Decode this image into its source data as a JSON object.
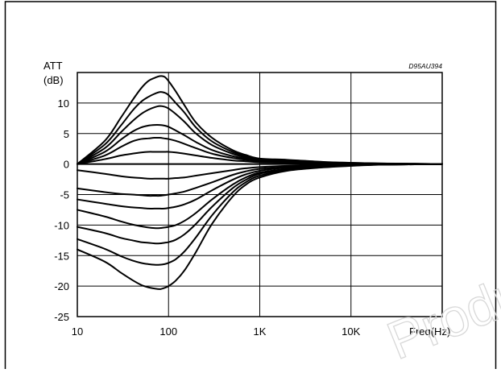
{
  "figure_id": "D95AU394",
  "watermark": "Product(s)",
  "chart_data": {
    "type": "line",
    "title": "",
    "xlabel": "Freq(Hz)",
    "ylabel": "ATT (dB)",
    "ylabel_lines": [
      "ATT",
      "(dB)"
    ],
    "x_scale": "log",
    "xlim": [
      10,
      100000
    ],
    "ylim": [
      -25,
      15
    ],
    "x_ticks": [
      10,
      100,
      1000,
      10000
    ],
    "x_tick_labels": [
      "10",
      "100",
      "1K",
      "10K"
    ],
    "y_ticks": [
      10,
      5,
      0,
      -5,
      -10,
      -15,
      -20,
      -25
    ],
    "y_tick_labels": [
      "10",
      "5",
      "0",
      "-5",
      "-10",
      "-15",
      "-20",
      "-25"
    ],
    "grid": true,
    "legend": "none",
    "x": [
      10,
      20,
      30,
      40,
      50,
      60,
      70,
      80,
      90,
      100,
      120,
      150,
      200,
      300,
      500,
      700,
      1000,
      2000,
      5000,
      10000,
      20000,
      50000,
      100000
    ],
    "series": [
      {
        "values": [
          0,
          3.8,
          7.6,
          10.4,
          12.4,
          13.6,
          14.1,
          14.4,
          14.3,
          13.6,
          11.9,
          9.6,
          6.8,
          4.3,
          2.3,
          1.5,
          0.9,
          0.7,
          0.35,
          0.2,
          0.1,
          0.05,
          0
        ]
      },
      {
        "values": [
          0,
          3.2,
          6.3,
          8.7,
          10.2,
          11.0,
          11.5,
          11.8,
          11.7,
          11.3,
          10.0,
          8.4,
          6.0,
          3.7,
          2.0,
          1.3,
          0.8,
          0.6,
          0.3,
          0.2,
          0.1,
          0.05,
          0
        ]
      },
      {
        "values": [
          0,
          2.6,
          5.2,
          7.0,
          8.2,
          8.9,
          9.3,
          9.5,
          9.4,
          9.1,
          8.2,
          6.9,
          5.0,
          3.1,
          1.7,
          1.1,
          0.7,
          0.5,
          0.3,
          0.15,
          0.1,
          0.05,
          0
        ]
      },
      {
        "values": [
          0,
          2.0,
          4.0,
          5.3,
          6.0,
          6.3,
          6.4,
          6.4,
          6.3,
          6.1,
          5.5,
          4.7,
          3.6,
          2.3,
          1.3,
          0.9,
          0.6,
          0.4,
          0.2,
          0.1,
          0.05,
          0.02,
          0
        ]
      },
      {
        "values": [
          0,
          1.4,
          2.8,
          3.7,
          4.1,
          4.2,
          4.3,
          4.3,
          4.2,
          4.1,
          3.8,
          3.3,
          2.6,
          1.7,
          1.0,
          0.7,
          0.5,
          0.3,
          0.2,
          0.1,
          0.05,
          0.02,
          0
        ]
      },
      {
        "values": [
          0,
          0.8,
          1.4,
          1.7,
          1.9,
          2.0,
          2.0,
          2.0,
          2.0,
          2.0,
          1.9,
          1.7,
          1.4,
          1.0,
          0.6,
          0.45,
          0.3,
          0.2,
          0.1,
          0.05,
          0.02,
          0.01,
          0
        ]
      },
      {
        "values": [
          0,
          0,
          0,
          0,
          0,
          0,
          0,
          0,
          0,
          0,
          0,
          0,
          0,
          0,
          0,
          0,
          0,
          0,
          0,
          0,
          0,
          0,
          0
        ]
      },
      {
        "values": [
          -1.0,
          -1.6,
          -2.0,
          -2.2,
          -2.3,
          -2.4,
          -2.4,
          -2.4,
          -2.4,
          -2.4,
          -2.3,
          -2.2,
          -1.9,
          -1.5,
          -1.0,
          -0.7,
          -0.5,
          -0.3,
          -0.2,
          -0.1,
          -0.05,
          -0.02,
          0
        ]
      },
      {
        "values": [
          -4.0,
          -4.6,
          -4.9,
          -5.0,
          -5.1,
          -5.2,
          -5.2,
          -5.2,
          -5.1,
          -5.0,
          -4.8,
          -4.5,
          -3.9,
          -3.0,
          -1.8,
          -1.2,
          -0.8,
          -0.5,
          -0.3,
          -0.15,
          -0.07,
          -0.03,
          0
        ]
      },
      {
        "values": [
          -5.8,
          -6.5,
          -6.9,
          -7.1,
          -7.2,
          -7.3,
          -7.3,
          -7.3,
          -7.3,
          -7.2,
          -7.0,
          -6.6,
          -5.8,
          -4.3,
          -2.6,
          -1.7,
          -1.1,
          -0.6,
          -0.35,
          -0.2,
          -0.1,
          -0.04,
          0
        ]
      },
      {
        "values": [
          -7.5,
          -8.6,
          -9.4,
          -9.9,
          -10.2,
          -10.4,
          -10.5,
          -10.5,
          -10.4,
          -10.3,
          -10.0,
          -9.3,
          -8.0,
          -5.8,
          -3.4,
          -2.2,
          -1.4,
          -0.8,
          -0.4,
          -0.2,
          -0.1,
          -0.04,
          0
        ]
      },
      {
        "values": [
          -10.3,
          -11.3,
          -12.1,
          -12.5,
          -12.8,
          -12.9,
          -13.0,
          -13.0,
          -12.9,
          -12.8,
          -12.4,
          -11.5,
          -9.8,
          -7.0,
          -4.0,
          -2.6,
          -1.6,
          -0.9,
          -0.5,
          -0.25,
          -0.1,
          -0.05,
          0
        ]
      },
      {
        "values": [
          -12.3,
          -13.9,
          -15.1,
          -15.8,
          -16.2,
          -16.4,
          -16.5,
          -16.5,
          -16.4,
          -16.2,
          -15.6,
          -14.3,
          -12.0,
          -8.4,
          -4.7,
          -3.0,
          -1.9,
          -1.0,
          -0.5,
          -0.25,
          -0.12,
          -0.05,
          0
        ]
      },
      {
        "values": [
          -14.0,
          -16.0,
          -17.8,
          -19.0,
          -19.8,
          -20.2,
          -20.4,
          -20.5,
          -20.3,
          -20.0,
          -19.1,
          -17.4,
          -14.4,
          -9.8,
          -5.4,
          -3.4,
          -2.2,
          -1.1,
          -0.55,
          -0.3,
          -0.12,
          -0.05,
          0
        ]
      }
    ]
  }
}
